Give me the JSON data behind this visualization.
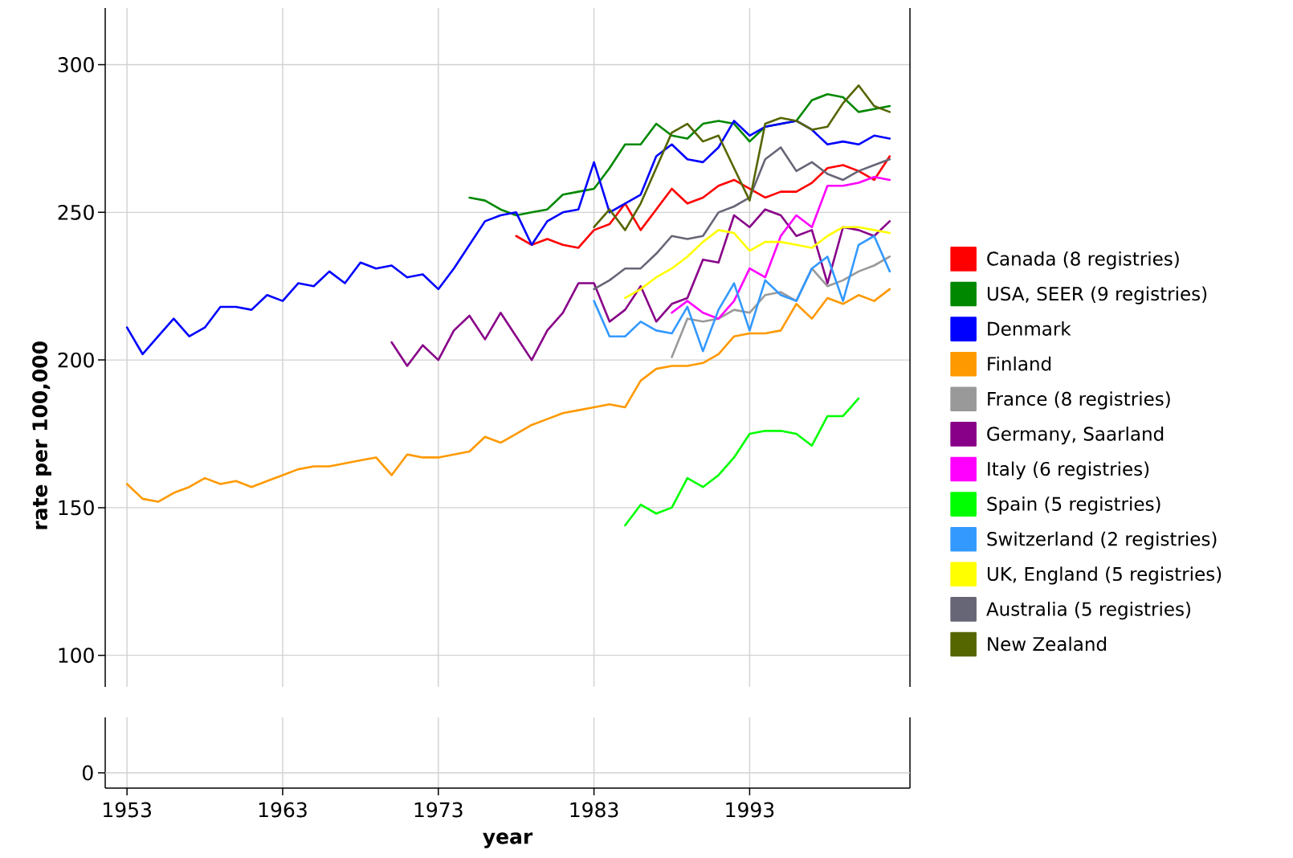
{
  "chart_data": {
    "type": "line",
    "xlabel": "year",
    "ylabel": "rate per 100,000",
    "xlim": [
      1951.6,
      2003.3
    ],
    "xticks": [
      1953,
      1963,
      1973,
      1983,
      1993
    ],
    "ylim": [
      89.3,
      319.2
    ],
    "yticks": [
      100,
      150,
      200,
      250,
      300
    ],
    "grid": true,
    "legend": "right",
    "annotations": [
      "0"
    ],
    "series": [
      {
        "name": "Canada (8 registries)",
        "color": "#ff0000",
        "x": [
          1978,
          1979,
          1980,
          1981,
          1982,
          1983,
          1984,
          1985,
          1986,
          1987,
          1988,
          1989,
          1990,
          1991,
          1992,
          1993,
          1994,
          1995,
          1996,
          1997,
          1998,
          1999,
          2000,
          2001,
          2002
        ],
        "values": [
          242,
          239,
          241,
          239,
          238,
          244,
          246,
          253,
          244,
          251,
          258,
          253,
          255,
          259,
          261,
          258,
          255,
          257,
          257,
          260,
          265,
          266,
          264,
          261,
          269
        ]
      },
      {
        "name": "USA, SEER (9 registries)",
        "color": "#008800",
        "x": [
          1975,
          1976,
          1977,
          1978,
          1979,
          1980,
          1981,
          1982,
          1983,
          1984,
          1985,
          1986,
          1987,
          1988,
          1989,
          1990,
          1991,
          1992,
          1993,
          1994,
          1995,
          1996,
          1997,
          1998,
          1999,
          2000,
          2001,
          2002
        ],
        "values": [
          255,
          254,
          251,
          249,
          250,
          251,
          256,
          257,
          258,
          265,
          273,
          273,
          280,
          276,
          275,
          280,
          281,
          280,
          274,
          279,
          280,
          281,
          288,
          290,
          289,
          284,
          285,
          286
        ]
      },
      {
        "name": "Denmark",
        "color": "#0000ff",
        "x": [
          1953,
          1954,
          1955,
          1956,
          1957,
          1958,
          1959,
          1960,
          1961,
          1962,
          1963,
          1964,
          1965,
          1966,
          1967,
          1968,
          1969,
          1970,
          1971,
          1972,
          1973,
          1974,
          1975,
          1976,
          1977,
          1978,
          1979,
          1980,
          1981,
          1982,
          1983,
          1984,
          1985,
          1986,
          1987,
          1988,
          1989,
          1990,
          1991,
          1992,
          1993,
          1994,
          1995,
          1996,
          1997,
          1998,
          1999,
          2000,
          2001,
          2002
        ],
        "values": [
          211,
          202,
          208,
          214,
          208,
          211,
          218,
          218,
          217,
          222,
          220,
          226,
          225,
          230,
          226,
          233,
          231,
          232,
          228,
          229,
          224,
          231,
          239,
          247,
          249,
          250,
          239,
          247,
          250,
          251,
          267,
          250,
          253,
          256,
          269,
          273,
          268,
          267,
          272,
          281,
          276,
          279,
          280,
          281,
          278,
          273,
          274,
          273,
          276,
          275
        ]
      },
      {
        "name": "Finland",
        "color": "#ff9900",
        "x": [
          1953,
          1954,
          1955,
          1956,
          1957,
          1958,
          1959,
          1960,
          1961,
          1962,
          1963,
          1964,
          1965,
          1966,
          1967,
          1968,
          1969,
          1970,
          1971,
          1972,
          1973,
          1974,
          1975,
          1976,
          1977,
          1978,
          1979,
          1980,
          1981,
          1982,
          1983,
          1984,
          1985,
          1986,
          1987,
          1988,
          1989,
          1990,
          1991,
          1992,
          1993,
          1994,
          1995,
          1996,
          1997,
          1998,
          1999,
          2000,
          2001,
          2002
        ],
        "values": [
          158,
          153,
          152,
          155,
          157,
          160,
          158,
          159,
          157,
          159,
          161,
          163,
          164,
          164,
          165,
          166,
          167,
          161,
          168,
          167,
          167,
          168,
          169,
          174,
          172,
          175,
          178,
          180,
          182,
          183,
          184,
          185,
          184,
          193,
          197,
          198,
          198,
          199,
          202,
          208,
          209,
          209,
          210,
          219,
          214,
          221,
          219,
          222,
          220,
          224
        ]
      },
      {
        "name": "France (8 registries)",
        "color": "#999999",
        "x": [
          1988,
          1989,
          1990,
          1991,
          1992,
          1993,
          1994,
          1995,
          1996,
          1997,
          1998,
          1999,
          2000,
          2001,
          2002
        ],
        "values": [
          201,
          214,
          213,
          214,
          217,
          216,
          222,
          223,
          220,
          231,
          225,
          227,
          230,
          232,
          235
        ]
      },
      {
        "name": "Germany, Saarland",
        "color": "#880088",
        "x": [
          1970,
          1971,
          1972,
          1973,
          1974,
          1975,
          1976,
          1977,
          1978,
          1979,
          1980,
          1981,
          1982,
          1983,
          1984,
          1985,
          1986,
          1987,
          1988,
          1989,
          1990,
          1991,
          1992,
          1993,
          1994,
          1995,
          1996,
          1997,
          1998,
          1999,
          2000,
          2001,
          2002
        ],
        "values": [
          206,
          198,
          205,
          200,
          210,
          215,
          207,
          216,
          208,
          200,
          210,
          216,
          226,
          226,
          213,
          217,
          225,
          213,
          219,
          221,
          234,
          233,
          249,
          245,
          251,
          249,
          242,
          244,
          226,
          245,
          244,
          242,
          247
        ]
      },
      {
        "name": "Italy (6 registries)",
        "color": "#ff00ff",
        "x": [
          1988,
          1989,
          1990,
          1991,
          1992,
          1993,
          1994,
          1995,
          1996,
          1997,
          1998,
          1999,
          2000,
          2001,
          2002
        ],
        "values": [
          216,
          220,
          216,
          214,
          220,
          231,
          228,
          242,
          249,
          245,
          259,
          259,
          260,
          262,
          261
        ]
      },
      {
        "name": "Spain (5 registries)",
        "color": "#00ff00",
        "x": [
          1985,
          1986,
          1987,
          1988,
          1989,
          1990,
          1991,
          1992,
          1993,
          1994,
          1995,
          1996,
          1997,
          1998,
          1999,
          2000
        ],
        "values": [
          144,
          151,
          148,
          150,
          160,
          157,
          161,
          167,
          175,
          176,
          176,
          175,
          171,
          181,
          181,
          187
        ]
      },
      {
        "name": "Switzerland (2 registries)",
        "color": "#3399ff",
        "x": [
          1983,
          1984,
          1985,
          1986,
          1987,
          1988,
          1989,
          1990,
          1991,
          1992,
          1993,
          1994,
          1995,
          1996,
          1997,
          1998,
          1999,
          2000,
          2001,
          2002
        ],
        "values": [
          220,
          208,
          208,
          213,
          210,
          209,
          218,
          203,
          217,
          226,
          210,
          227,
          222,
          220,
          231,
          235,
          220,
          239,
          242,
          230
        ]
      },
      {
        "name": "UK, England (5 registries)",
        "color": "#ffff00",
        "x": [
          1985,
          1986,
          1987,
          1988,
          1989,
          1990,
          1991,
          1992,
          1993,
          1994,
          1995,
          1996,
          1997,
          1998,
          1999,
          2000,
          2001,
          2002
        ],
        "values": [
          221,
          224,
          228,
          231,
          235,
          240,
          244,
          243,
          237,
          240,
          240,
          239,
          238,
          242,
          245,
          245,
          244,
          243
        ]
      },
      {
        "name": "Australia (5 registries)",
        "color": "#666677",
        "x": [
          1983,
          1984,
          1985,
          1986,
          1987,
          1988,
          1989,
          1990,
          1991,
          1992,
          1993,
          1994,
          1995,
          1996,
          1997,
          1998,
          1999,
          2000,
          2001,
          2002
        ],
        "values": [
          224,
          227,
          231,
          231,
          236,
          242,
          241,
          242,
          250,
          252,
          255,
          268,
          272,
          264,
          267,
          263,
          261,
          264,
          266,
          268
        ]
      },
      {
        "name": "New Zealand",
        "color": "#556600",
        "x": [
          1983,
          1984,
          1985,
          1986,
          1987,
          1988,
          1989,
          1990,
          1991,
          1992,
          1993,
          1994,
          1995,
          1996,
          1997,
          1998,
          1999,
          2000,
          2001,
          2002
        ],
        "values": [
          245,
          251,
          244,
          253,
          265,
          277,
          280,
          274,
          276,
          265,
          254,
          280,
          282,
          281,
          278,
          279,
          287,
          293,
          286,
          284
        ]
      }
    ]
  }
}
